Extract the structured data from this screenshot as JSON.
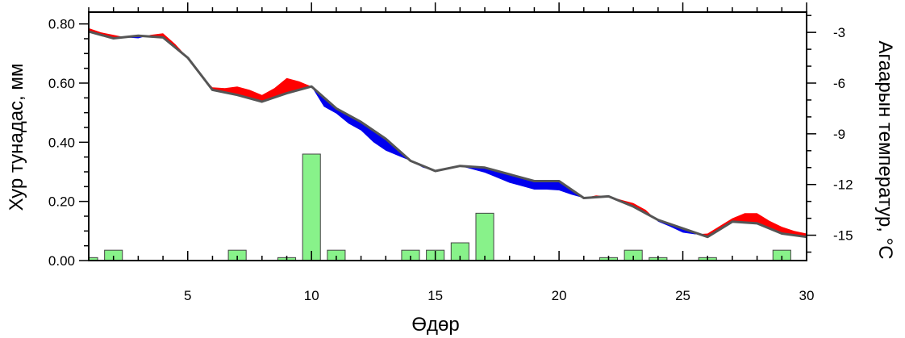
{
  "chart_data": {
    "type": "bar+line",
    "xlabel": "Өдөр",
    "ylabel_left": "Хур тунадас, мм",
    "ylabel_right": "Агаарын температур, °C",
    "xlim": [
      1,
      30
    ],
    "ylim_left": [
      0,
      0.84
    ],
    "ylim_right": [
      -16.5,
      -1.8
    ],
    "x_ticks": [
      5,
      10,
      15,
      20,
      25,
      30
    ],
    "y_left_ticks": [
      "0.00",
      "0.20",
      "0.40",
      "0.60",
      "0.80"
    ],
    "y_right_ticks": [
      "-3",
      "-6",
      "-9",
      "-12",
      "-15"
    ],
    "precipitation": {
      "days": [
        1,
        2,
        7,
        9,
        10,
        11,
        14,
        15,
        16,
        17,
        22,
        23,
        24,
        26,
        29
      ],
      "values": [
        0.01,
        0.035,
        0.035,
        0.01,
        0.36,
        0.035,
        0.035,
        0.035,
        0.06,
        0.16,
        0.01,
        0.035,
        0.01,
        0.01,
        0.035
      ]
    },
    "temperature_mean": {
      "x": [
        1,
        2,
        3,
        4,
        5,
        6,
        7,
        8,
        9,
        10,
        11,
        12,
        13,
        14,
        15,
        16,
        17,
        18,
        19,
        20,
        21,
        22,
        23,
        24,
        25,
        26,
        27,
        28,
        29,
        30
      ],
      "y": [
        -2.95,
        -3.35,
        -3.2,
        -3.3,
        -4.5,
        -6.4,
        -6.7,
        -7.1,
        -6.6,
        -6.2,
        -7.5,
        -8.3,
        -9.3,
        -10.6,
        -11.2,
        -10.9,
        -11.0,
        -11.4,
        -11.8,
        -11.8,
        -12.8,
        -12.7,
        -13.3,
        -14.1,
        -14.6,
        -15.1,
        -14.2,
        -14.3,
        -14.9,
        -15.1
      ]
    },
    "temperature_actual": {
      "x": [
        1,
        1.5,
        2,
        2.5,
        3,
        3.5,
        4,
        4.5,
        5,
        5.5,
        6,
        6.5,
        7,
        7.5,
        8,
        8.5,
        9,
        9.5,
        10,
        10.5,
        11,
        11.5,
        12,
        12.5,
        13,
        13.5,
        14,
        14.5,
        15,
        15.5,
        16,
        16.5,
        17,
        17.5,
        18,
        18.5,
        19,
        19.5,
        20,
        20.5,
        21,
        21.5,
        22,
        22.5,
        23,
        23.5,
        24,
        24.5,
        25,
        25.5,
        26,
        26.5,
        27,
        27.5,
        28,
        28.5,
        29,
        29.5,
        30
      ],
      "y": [
        -2.75,
        -3.0,
        -3.15,
        -3.3,
        -3.35,
        -3.15,
        -3.05,
        -3.7,
        -4.5,
        -5.5,
        -6.25,
        -6.3,
        -6.2,
        -6.4,
        -6.7,
        -6.3,
        -5.7,
        -5.9,
        -6.2,
        -7.4,
        -7.8,
        -8.4,
        -8.8,
        -9.5,
        -10.0,
        -10.3,
        -10.6,
        -11.0,
        -11.2,
        -11.05,
        -10.9,
        -11.1,
        -11.3,
        -11.6,
        -11.9,
        -12.1,
        -12.3,
        -12.3,
        -12.35,
        -12.6,
        -12.8,
        -12.65,
        -12.7,
        -12.9,
        -13.1,
        -13.5,
        -14.2,
        -14.5,
        -14.85,
        -14.95,
        -14.9,
        -14.45,
        -14.0,
        -13.7,
        -13.7,
        -14.15,
        -14.5,
        -14.75,
        -14.9
      ]
    },
    "colors": {
      "bar_fill": "#88f28a",
      "bar_stroke": "#444444",
      "mean_line": "#555555",
      "warmer_fill": "#ff0000",
      "colder_fill": "#0000ee"
    },
    "grid": false,
    "legend": "none"
  }
}
